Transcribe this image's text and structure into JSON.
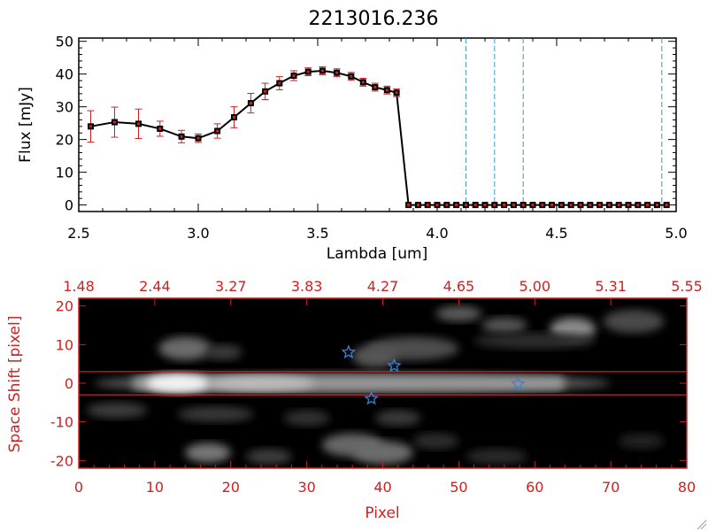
{
  "chart_data": [
    {
      "type": "line",
      "title": "2213016.236",
      "xlabel": "Lambda [um]",
      "ylabel": "Flux [mJy]",
      "xlim": [
        2.5,
        5.0
      ],
      "ylim": [
        -2,
        51
      ],
      "x_ticks": [
        "2.5",
        "3.0",
        "3.5",
        "4.0",
        "4.5",
        "5.0"
      ],
      "y_ticks": [
        "0",
        "10",
        "20",
        "30",
        "40",
        "50"
      ],
      "series": [
        {
          "x": [
            2.55,
            2.65,
            2.75,
            2.84,
            2.93,
            3.0,
            3.08,
            3.15,
            3.22,
            3.28,
            3.34,
            3.4,
            3.46,
            3.52,
            3.58,
            3.64,
            3.69,
            3.74,
            3.79,
            3.83,
            3.88,
            3.92,
            3.96,
            4.0,
            4.04,
            4.08,
            4.12,
            4.16,
            4.2,
            4.24,
            4.28,
            4.32,
            4.36,
            4.4,
            4.44,
            4.48,
            4.52,
            4.56,
            4.6,
            4.64,
            4.68,
            4.72,
            4.76,
            4.8,
            4.84,
            4.88,
            4.92,
            4.96
          ],
          "values": [
            24.0,
            25.3,
            24.8,
            23.3,
            20.9,
            20.4,
            22.6,
            26.8,
            31.1,
            34.7,
            37.2,
            39.5,
            40.7,
            41.0,
            40.4,
            39.3,
            37.5,
            36.0,
            35.1,
            34.3,
            0,
            0,
            0,
            0,
            0,
            0,
            0,
            0,
            0,
            0,
            0,
            0,
            0,
            0,
            0,
            0,
            0,
            0,
            0,
            0,
            0,
            0,
            0,
            0,
            0,
            0,
            0,
            0
          ],
          "errors": [
            4.8,
            4.6,
            4.5,
            2.3,
            1.9,
            1.3,
            2.2,
            3.2,
            3.0,
            2.5,
            2.0,
            1.5,
            1.2,
            1.2,
            1.2,
            1.2,
            1.2,
            1.2,
            1.2,
            1.2,
            0,
            0,
            0,
            0,
            0,
            0,
            0,
            0,
            0,
            0,
            0,
            0,
            0,
            0,
            0,
            0,
            0,
            0,
            0,
            0,
            0,
            0,
            0,
            0,
            0,
            0,
            0,
            0
          ]
        }
      ],
      "vertical_lines_x": [
        4.12,
        4.24,
        4.36,
        4.94
      ],
      "colors": {
        "line": "#000000",
        "marker": "#cc2222",
        "errorbar": "#cc2222",
        "vline": "#3a9ac8"
      }
    },
    {
      "type": "heatmap",
      "xlabel": "Pixel",
      "ylabel": "Space Shift [pixel]",
      "xlim": [
        0,
        80
      ],
      "ylim": [
        -22,
        22
      ],
      "x_ticks": [
        "0",
        "10",
        "20",
        "30",
        "40",
        "50",
        "60",
        "70",
        "80"
      ],
      "y_ticks": [
        "20",
        "10",
        "0",
        "-10",
        "-20"
      ],
      "top_axis_ticks": [
        "1.48",
        "2.44",
        "3.27",
        "3.83",
        "4.27",
        "4.65",
        "5.00",
        "5.31",
        "5.55"
      ],
      "horizontal_lines_y": [
        3,
        -3
      ],
      "stars": [
        {
          "x": 35.5,
          "y": 8
        },
        {
          "x": 41.5,
          "y": 4.5
        },
        {
          "x": 38.5,
          "y": -4
        },
        {
          "x": 57.8,
          "y": -0.2
        }
      ],
      "colors": {
        "axes": "#cc2222",
        "star": "#3a80d8",
        "hline": "#cc2222",
        "background": "#000000"
      }
    }
  ]
}
